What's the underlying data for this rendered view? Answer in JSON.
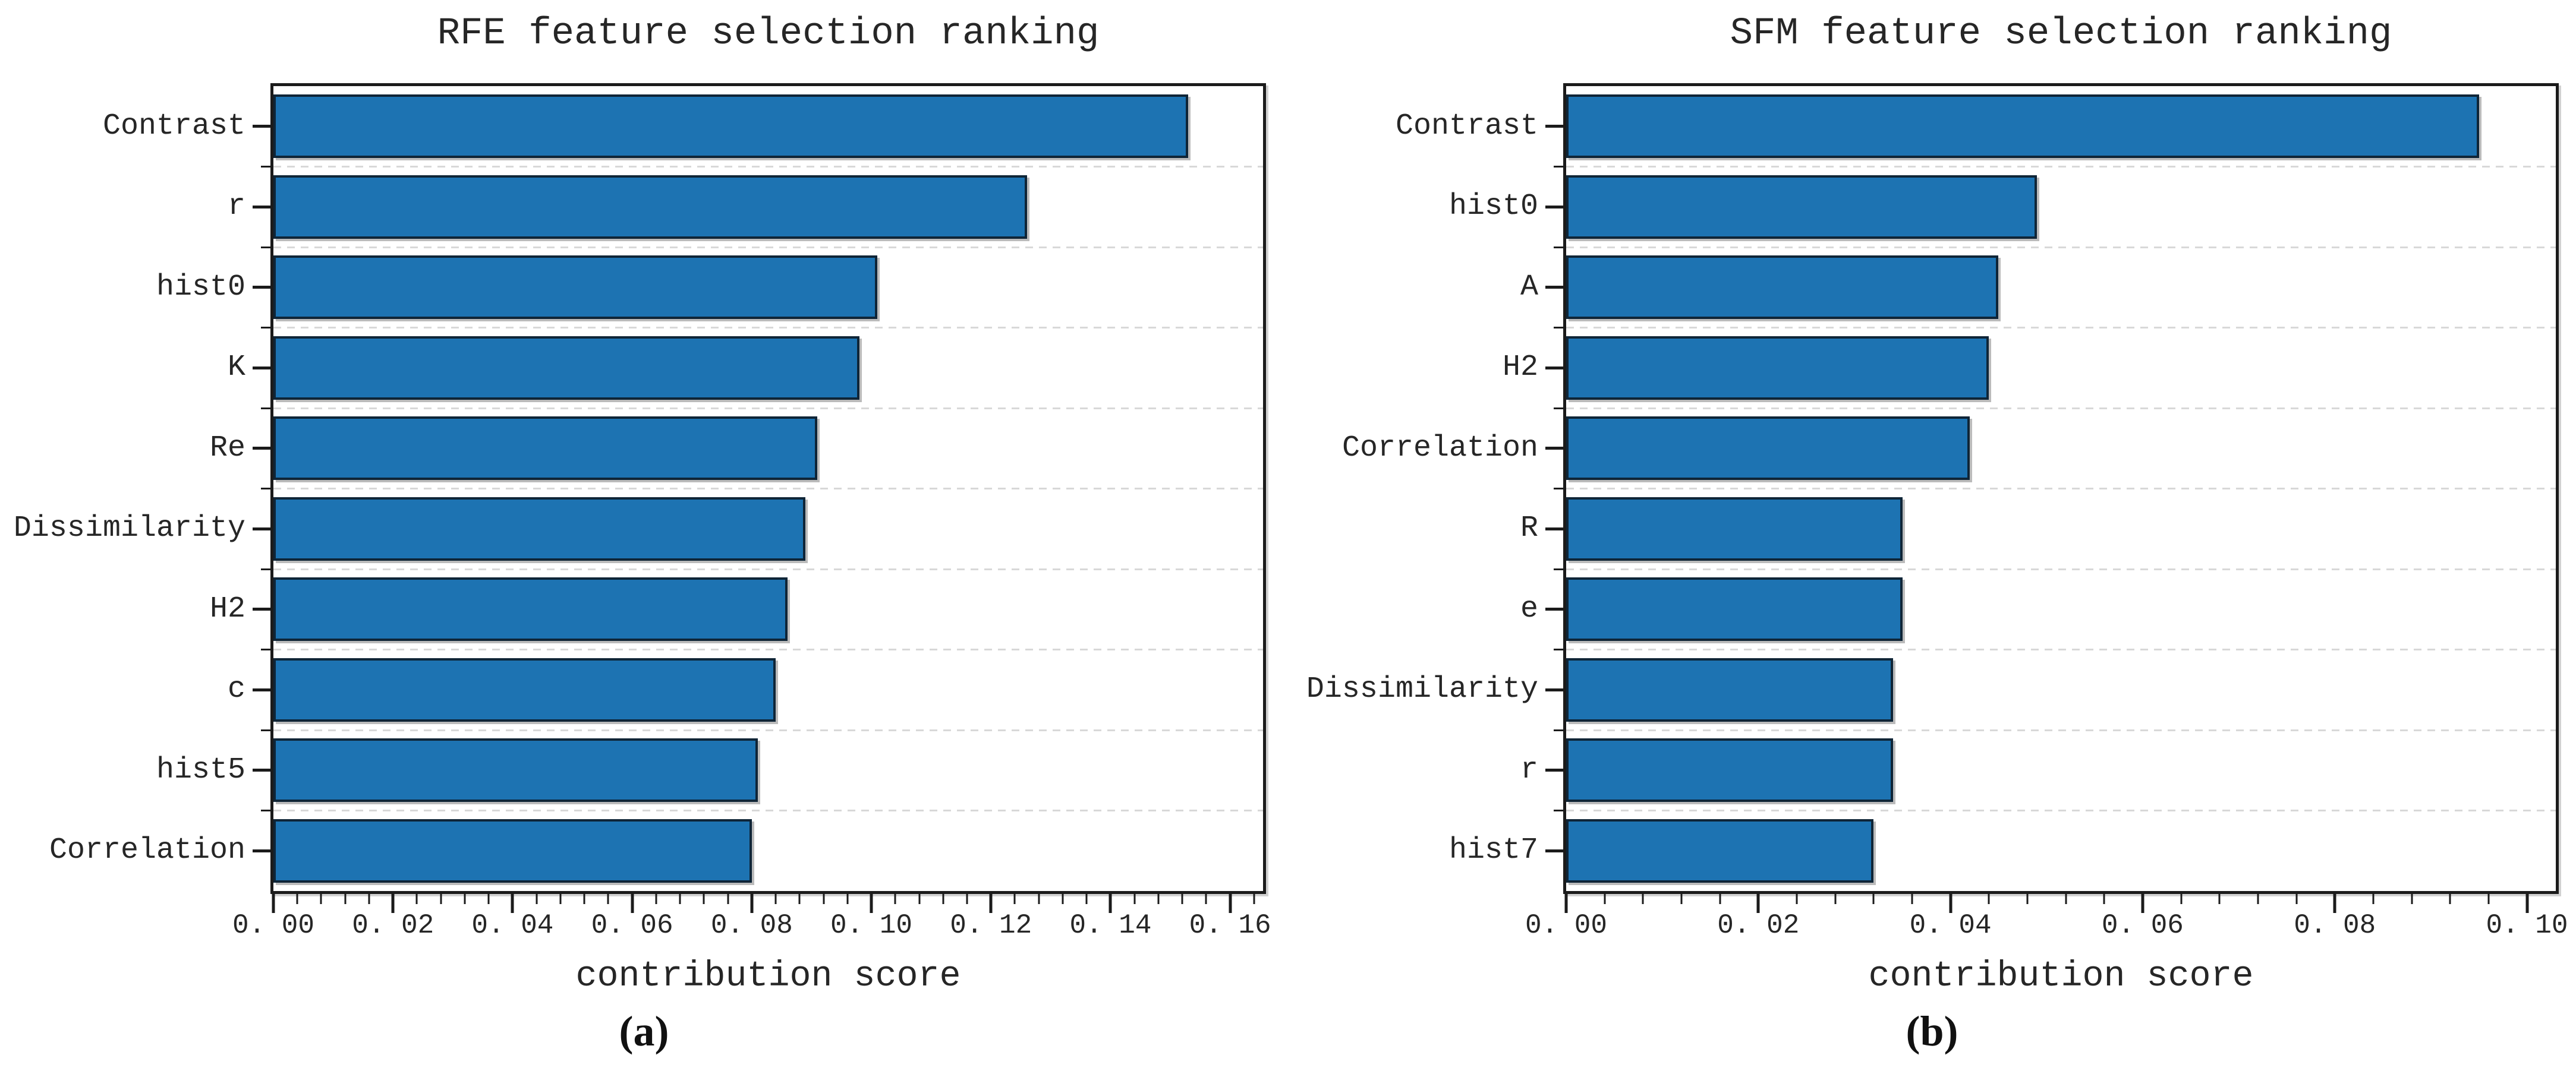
{
  "figure": {
    "background": "#ffffff",
    "bar_fill": "#1d73b2",
    "bar_edge": "#0f2537",
    "grid_color": "#d8d8d8",
    "axis_color": "#1b1b1b",
    "text_color": "#262626"
  },
  "chart_data": [
    {
      "type": "bar",
      "orientation": "horizontal",
      "title": "RFE feature selection ranking",
      "xlabel": "contribution score",
      "caption": "(a)",
      "categories": [
        "Contrast",
        "r",
        "hist0",
        "K",
        "Re",
        "Dissimilarity",
        "H2",
        "c",
        "hist5",
        "Correlation"
      ],
      "values": [
        0.153,
        0.126,
        0.101,
        0.098,
        0.091,
        0.089,
        0.086,
        0.084,
        0.081,
        0.08
      ],
      "xlim": [
        0,
        0.1655
      ],
      "x_ticks": {
        "values": [
          0.0,
          0.02,
          0.04,
          0.06,
          0.08,
          0.1,
          0.12,
          0.14,
          0.16
        ],
        "labels": [
          "0. 00",
          "0. 02",
          "0. 04",
          "0. 06",
          "0. 08",
          "0. 10",
          "0. 12",
          "0. 14",
          "0. 16"
        ]
      },
      "x_minor_step": 0.004,
      "grid": "horizontal-dashed-at-row-boundaries",
      "legend": null
    },
    {
      "type": "bar",
      "orientation": "horizontal",
      "title": "SFM feature selection ranking",
      "xlabel": "contribution score",
      "caption": "(b)",
      "categories": [
        "Contrast",
        "hist0",
        "A",
        "H2",
        "Correlation",
        "R",
        "e",
        "Dissimilarity",
        "r",
        "hist7"
      ],
      "values": [
        0.095,
        0.049,
        0.045,
        0.044,
        0.042,
        0.035,
        0.035,
        0.034,
        0.034,
        0.032
      ],
      "xlim": [
        0,
        0.103
      ],
      "x_ticks": {
        "values": [
          0.0,
          0.02,
          0.04,
          0.06,
          0.08,
          0.1
        ],
        "labels": [
          "0. 00",
          "0. 02",
          "0. 04",
          "0. 06",
          "0. 08",
          "0. 10"
        ]
      },
      "x_minor_step": 0.004,
      "grid": "horizontal-dashed-at-row-boundaries",
      "legend": null
    }
  ]
}
